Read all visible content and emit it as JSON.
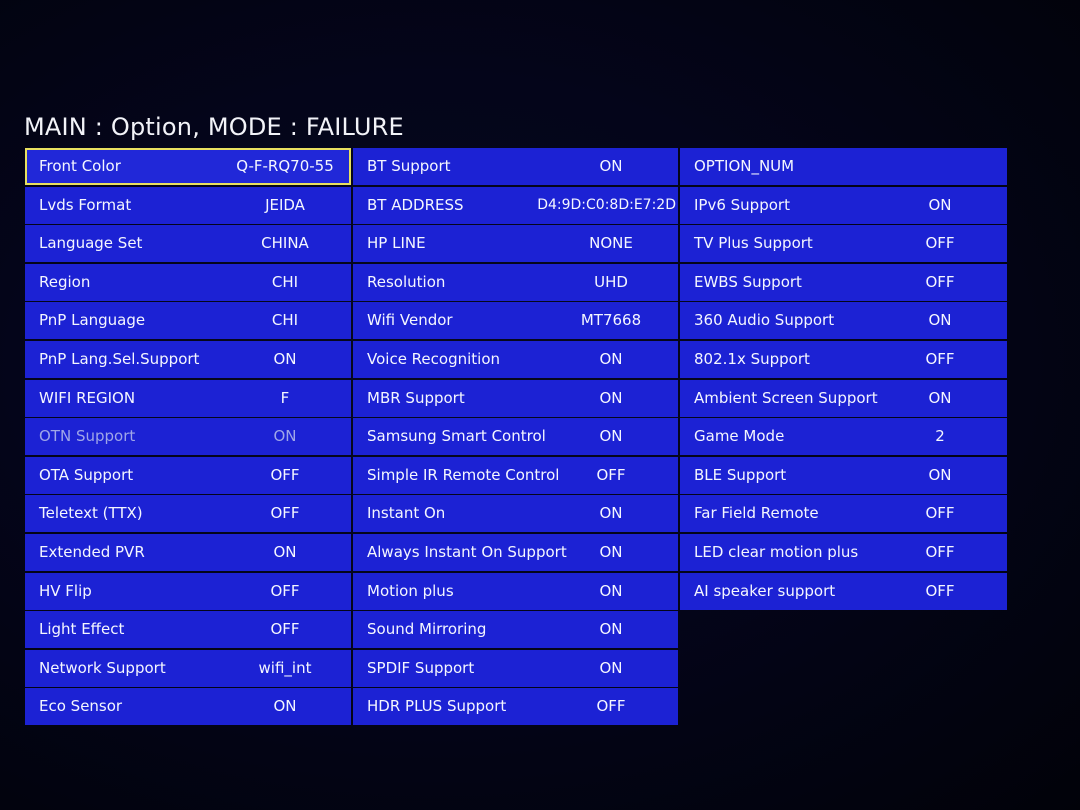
{
  "title": "MAIN : Option, MODE : FAILURE",
  "columns": [
    {
      "rows": [
        {
          "label": "Front Color",
          "value": "Q-F-RQ70-55"
        },
        {
          "label": "Lvds Format",
          "value": "JEIDA"
        },
        {
          "label": "Language Set",
          "value": "CHINA"
        },
        {
          "label": "Region",
          "value": "CHI"
        },
        {
          "label": "PnP Language",
          "value": "CHI"
        },
        {
          "label": "PnP Lang.Sel.Support",
          "value": "ON"
        },
        {
          "label": "WIFI REGION",
          "value": "F"
        },
        {
          "label": "OTN Support",
          "value": "ON"
        },
        {
          "label": "OTA Support",
          "value": "OFF"
        },
        {
          "label": "Teletext (TTX)",
          "value": "OFF"
        },
        {
          "label": "Extended PVR",
          "value": "ON"
        },
        {
          "label": "HV Flip",
          "value": "OFF"
        },
        {
          "label": "Light Effect",
          "value": "OFF"
        },
        {
          "label": "Network Support",
          "value": "wifi_int"
        },
        {
          "label": "Eco Sensor",
          "value": "ON"
        }
      ]
    },
    {
      "rows": [
        {
          "label": "BT Support",
          "value": "ON"
        },
        {
          "label": "BT ADDRESS",
          "value": "D4:9D:C0:8D:E7:2D"
        },
        {
          "label": "HP LINE",
          "value": "NONE"
        },
        {
          "label": "Resolution",
          "value": "UHD"
        },
        {
          "label": "Wifi Vendor",
          "value": "MT7668"
        },
        {
          "label": "Voice Recognition",
          "value": "ON"
        },
        {
          "label": "MBR Support",
          "value": "ON"
        },
        {
          "label": "Samsung Smart Control",
          "value": "ON"
        },
        {
          "label": "Simple IR Remote Control",
          "value": "OFF"
        },
        {
          "label": "Instant On",
          "value": "ON"
        },
        {
          "label": "Always Instant On Support",
          "value": "ON"
        },
        {
          "label": "Motion plus",
          "value": "ON"
        },
        {
          "label": "Sound Mirroring",
          "value": "ON"
        },
        {
          "label": "SPDIF Support",
          "value": "ON"
        },
        {
          "label": "HDR PLUS Support",
          "value": "OFF"
        }
      ]
    },
    {
      "rows": [
        {
          "label": "OPTION_NUM",
          "value": ""
        },
        {
          "label": "IPv6 Support",
          "value": "ON"
        },
        {
          "label": "TV Plus Support",
          "value": "OFF"
        },
        {
          "label": "EWBS Support",
          "value": "OFF"
        },
        {
          "label": "360 Audio Support",
          "value": "ON"
        },
        {
          "label": "802.1x Support",
          "value": "OFF"
        },
        {
          "label": "Ambient Screen Support",
          "value": "ON"
        },
        {
          "label": "Game Mode",
          "value": "2"
        },
        {
          "label": "BLE Support",
          "value": "ON"
        },
        {
          "label": "Far Field Remote",
          "value": "OFF"
        },
        {
          "label": "LED clear motion plus",
          "value": "OFF"
        },
        {
          "label": "AI speaker support",
          "value": "OFF"
        }
      ]
    }
  ],
  "colors": {
    "cell_background": "#1c22d4",
    "focus_outline": "#e8e060",
    "disabled_text": "#9fa6e8",
    "screen_background": "#02030f"
  }
}
